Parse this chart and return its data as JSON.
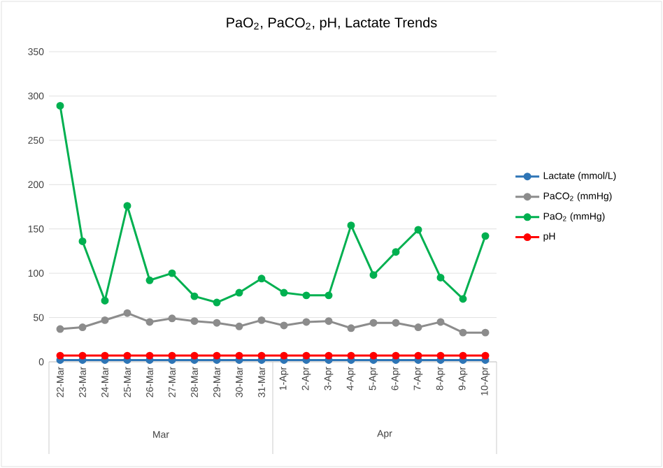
{
  "chart_data": {
    "type": "line",
    "title": "PaO$_{2}$, PaCO$_{2}$, pH, Lactate Trends",
    "categories": [
      "22-Mar",
      "23-Mar",
      "24-Mar",
      "25-Mar",
      "26-Mar",
      "27-Mar",
      "28-Mar",
      "29-Mar",
      "30-Mar",
      "31-Mar",
      "1-Apr",
      "2-Apr",
      "3-Apr",
      "4-Apr",
      "5-Apr",
      "6-Apr",
      "7-Apr",
      "8-Apr",
      "9-Apr",
      "10-Apr"
    ],
    "series": [
      {
        "name": "Lactate (mmol/L)",
        "color": "#2e75b6",
        "values": [
          2,
          2,
          2,
          2,
          2,
          2,
          2,
          2,
          2,
          2,
          2,
          2,
          2,
          2,
          2,
          2,
          2,
          2,
          2,
          2
        ]
      },
      {
        "name": "PaCO$_{2}$ (mmHg)",
        "color": "#8c8c8c",
        "values": [
          37,
          39,
          47,
          55,
          45,
          49,
          46,
          44,
          40,
          47,
          41,
          45,
          46,
          38,
          44,
          44,
          39,
          45,
          33,
          33
        ]
      },
      {
        "name": "PaO$_{2}$ (mmHg)",
        "color": "#00b050",
        "values": [
          289,
          136,
          69,
          176,
          92,
          100,
          74,
          67,
          78,
          94,
          78,
          75,
          75,
          154,
          98,
          124,
          149,
          95,
          71,
          142
        ]
      },
      {
        "name": "pH",
        "color": "#ff0000",
        "values": [
          7,
          7,
          7,
          7,
          7,
          7,
          7,
          7,
          7,
          7,
          7,
          7,
          7,
          7,
          7,
          7,
          7,
          7,
          7,
          7
        ]
      }
    ],
    "ylim": [
      0,
      350
    ],
    "yticks": [
      0,
      50,
      100,
      150,
      200,
      250,
      300,
      350
    ],
    "annotations": [
      "Mar",
      "Apr"
    ],
    "grid": "y",
    "legend": "right",
    "marker": "circle",
    "line_style": "solid"
  }
}
